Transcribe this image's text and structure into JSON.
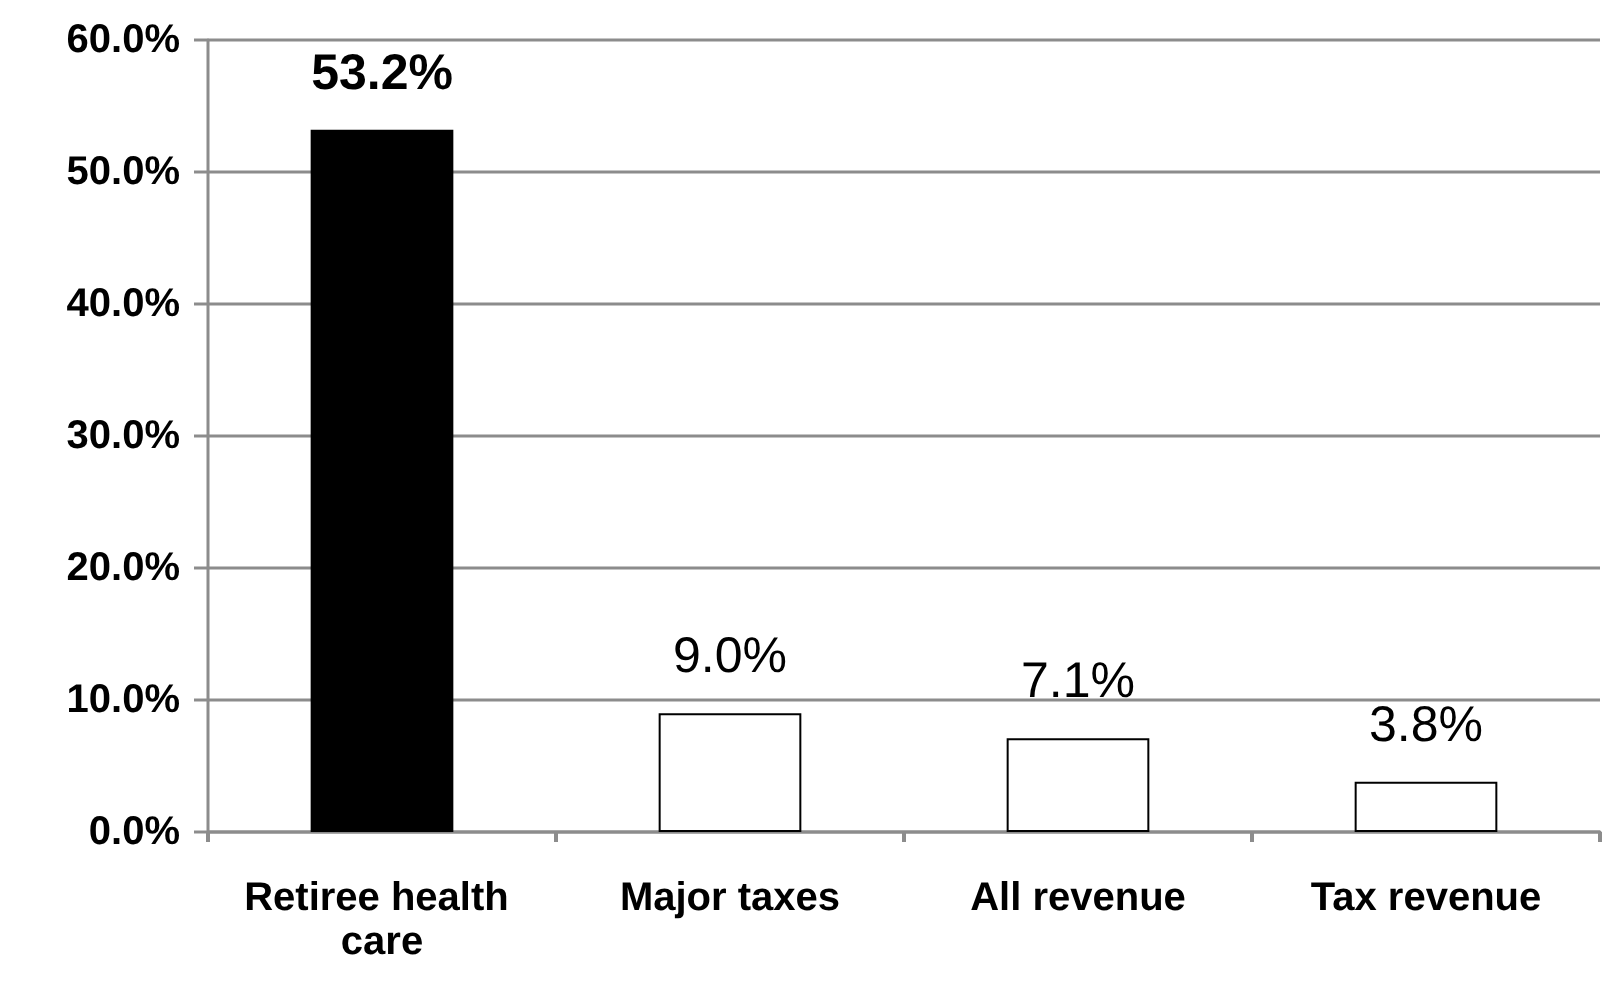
{
  "chart_data": {
    "type": "bar",
    "categories": [
      "Retiree health care",
      "Major taxes",
      "All revenue",
      "Tax revenue"
    ],
    "values": [
      53.2,
      9.0,
      7.1,
      3.8
    ],
    "colors": [
      "#000000",
      "#ffffff",
      "#ffffff",
      "#ffffff"
    ],
    "value_labels": [
      "53.2%",
      "9.0%",
      "7.1%",
      "3.8%"
    ],
    "ylim": [
      0,
      60
    ],
    "yticks": [
      {
        "value": 0,
        "label": "0.0%"
      },
      {
        "value": 10,
        "label": "10.0%"
      },
      {
        "value": 20,
        "label": "20.0%"
      },
      {
        "value": 30,
        "label": "30.0%"
      },
      {
        "value": 40,
        "label": "40.0%"
      },
      {
        "value": 50,
        "label": "50.0%"
      },
      {
        "value": 60,
        "label": "60.0%"
      }
    ],
    "grid": "y"
  }
}
